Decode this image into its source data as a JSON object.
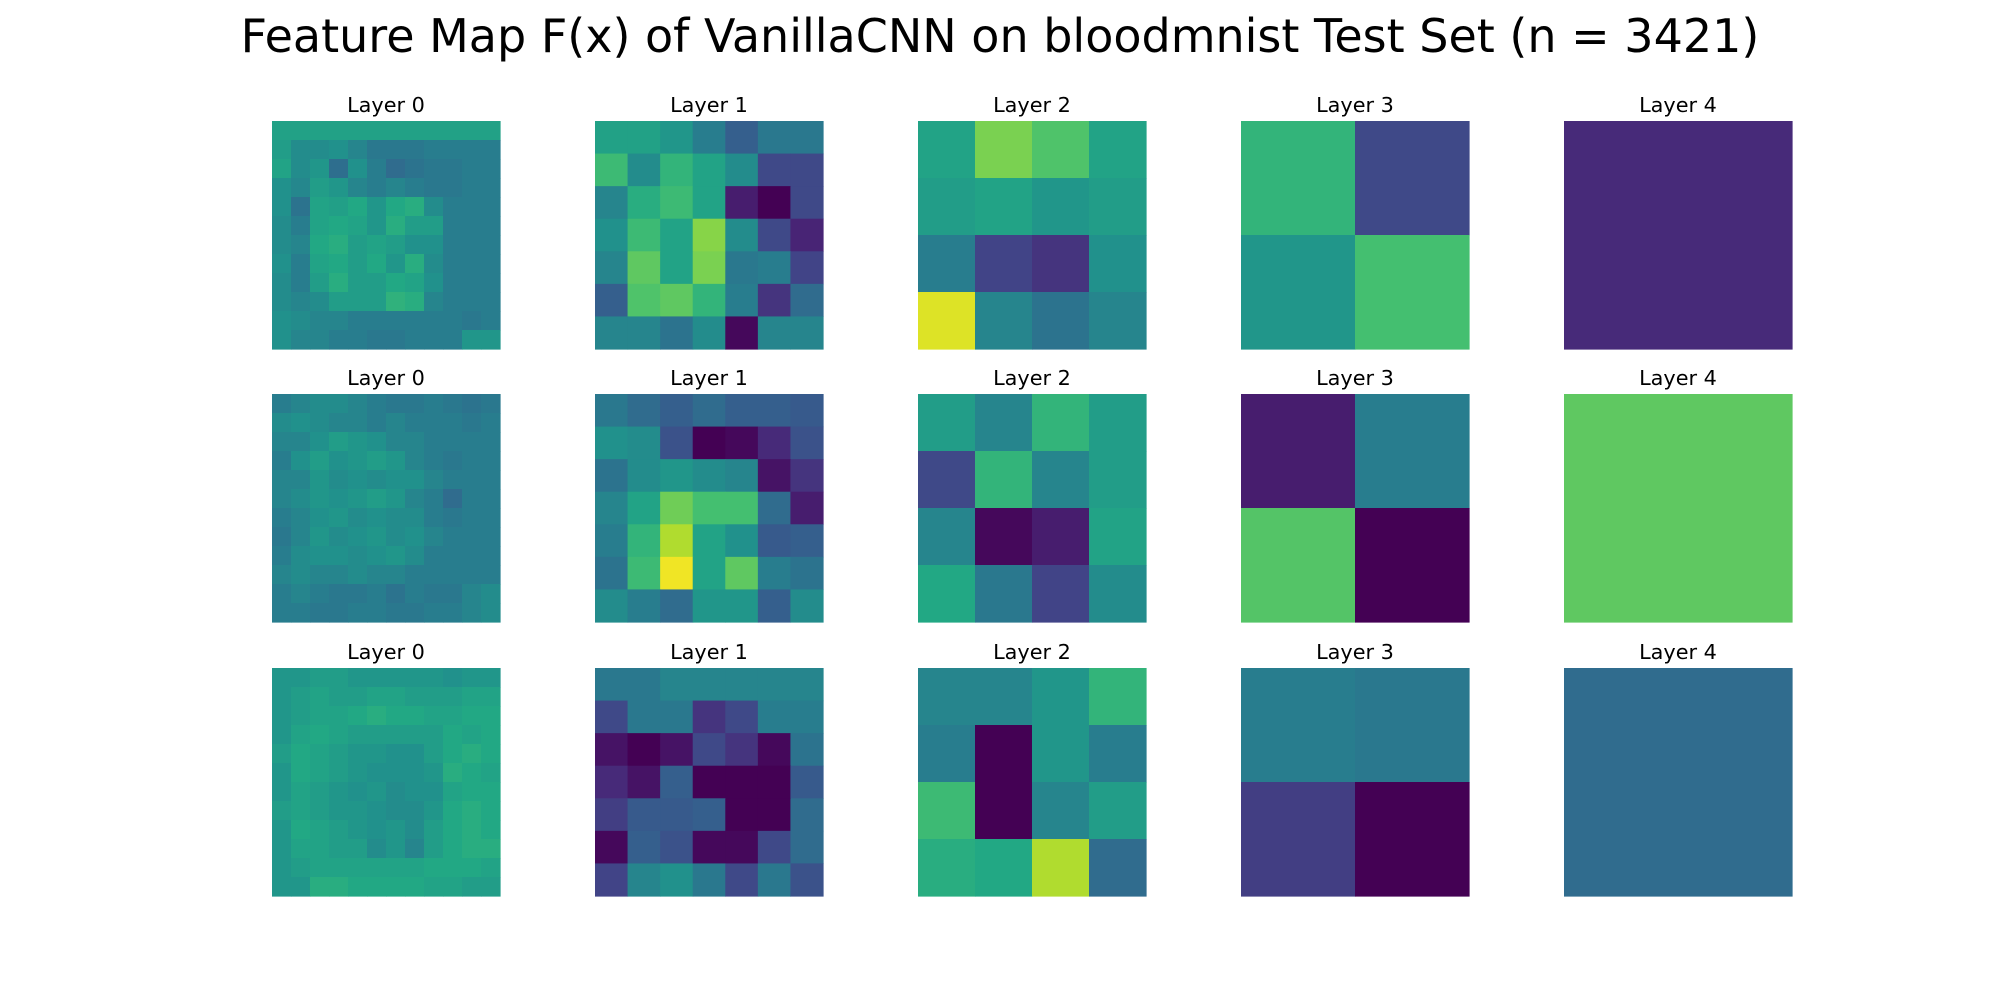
{
  "chart_data": {
    "type": "heatmap",
    "title": "Feature Map F(x) of VanillaCNN on bloodmnist Test Set (n = 3421)",
    "colormap": "viridis",
    "value_range": [
      0,
      1
    ],
    "axes_visible": false,
    "rows": [
      {
        "panels": [
          {
            "title": "Layer 0",
            "values": [
              [
                0.57,
                0.57,
                0.57,
                0.57,
                0.57,
                0.57,
                0.57,
                0.57,
                0.57,
                0.57,
                0.57,
                0.57
              ],
              [
                0.55,
                0.48,
                0.48,
                0.5,
                0.45,
                0.4,
                0.4,
                0.4,
                0.42,
                0.42,
                0.42,
                0.42
              ],
              [
                0.58,
                0.48,
                0.52,
                0.36,
                0.5,
                0.42,
                0.35,
                0.38,
                0.4,
                0.4,
                0.42,
                0.42
              ],
              [
                0.5,
                0.46,
                0.55,
                0.52,
                0.45,
                0.42,
                0.45,
                0.42,
                0.4,
                0.4,
                0.42,
                0.42
              ],
              [
                0.5,
                0.38,
                0.58,
                0.56,
                0.6,
                0.52,
                0.6,
                0.62,
                0.48,
                0.42,
                0.42,
                0.42
              ],
              [
                0.48,
                0.42,
                0.58,
                0.6,
                0.58,
                0.52,
                0.62,
                0.55,
                0.55,
                0.42,
                0.42,
                0.42
              ],
              [
                0.48,
                0.45,
                0.6,
                0.62,
                0.55,
                0.58,
                0.55,
                0.5,
                0.5,
                0.42,
                0.42,
                0.42
              ],
              [
                0.5,
                0.42,
                0.58,
                0.6,
                0.55,
                0.6,
                0.52,
                0.62,
                0.48,
                0.42,
                0.42,
                0.42
              ],
              [
                0.48,
                0.42,
                0.55,
                0.62,
                0.55,
                0.55,
                0.6,
                0.58,
                0.5,
                0.42,
                0.42,
                0.42
              ],
              [
                0.48,
                0.45,
                0.48,
                0.55,
                0.55,
                0.55,
                0.64,
                0.62,
                0.45,
                0.42,
                0.42,
                0.42
              ],
              [
                0.5,
                0.48,
                0.45,
                0.45,
                0.42,
                0.42,
                0.42,
                0.42,
                0.42,
                0.42,
                0.4,
                0.42
              ],
              [
                0.5,
                0.45,
                0.45,
                0.42,
                0.42,
                0.4,
                0.4,
                0.42,
                0.42,
                0.42,
                0.52,
                0.52
              ]
            ]
          },
          {
            "title": "Layer 1",
            "values": [
              [
                0.57,
                0.57,
                0.52,
                0.42,
                0.3,
                0.4,
                0.4
              ],
              [
                0.68,
                0.48,
                0.65,
                0.58,
                0.48,
                0.22,
                0.22
              ],
              [
                0.45,
                0.62,
                0.68,
                0.58,
                0.08,
                0.0,
                0.22
              ],
              [
                0.5,
                0.68,
                0.58,
                0.82,
                0.48,
                0.22,
                0.1
              ],
              [
                0.45,
                0.75,
                0.58,
                0.8,
                0.4,
                0.42,
                0.2
              ],
              [
                0.3,
                0.72,
                0.75,
                0.65,
                0.42,
                0.15,
                0.35
              ],
              [
                0.45,
                0.45,
                0.38,
                0.48,
                0.02,
                0.45,
                0.45
              ]
            ]
          },
          {
            "title": "Layer 2",
            "values": [
              [
                0.58,
                0.8,
                0.72,
                0.58
              ],
              [
                0.55,
                0.58,
                0.52,
                0.55
              ],
              [
                0.42,
                0.2,
                0.15,
                0.5
              ],
              [
                0.95,
                0.45,
                0.38,
                0.45
              ]
            ]
          },
          {
            "title": "Layer 3",
            "values": [
              [
                0.65,
                0.22
              ],
              [
                0.52,
                0.7
              ]
            ]
          },
          {
            "title": "Layer 4",
            "values": [
              [
                0.12
              ]
            ]
          }
        ]
      },
      {
        "panels": [
          {
            "title": "Layer 0",
            "values": [
              [
                0.42,
                0.45,
                0.48,
                0.48,
                0.45,
                0.42,
                0.4,
                0.4,
                0.42,
                0.4,
                0.38,
                0.4
              ],
              [
                0.48,
                0.5,
                0.48,
                0.45,
                0.45,
                0.42,
                0.45,
                0.42,
                0.42,
                0.42,
                0.4,
                0.42
              ],
              [
                0.45,
                0.45,
                0.5,
                0.55,
                0.52,
                0.5,
                0.45,
                0.45,
                0.42,
                0.42,
                0.42,
                0.42
              ],
              [
                0.42,
                0.5,
                0.55,
                0.5,
                0.52,
                0.55,
                0.52,
                0.45,
                0.42,
                0.4,
                0.42,
                0.42
              ],
              [
                0.45,
                0.45,
                0.52,
                0.48,
                0.5,
                0.48,
                0.5,
                0.5,
                0.45,
                0.42,
                0.42,
                0.42
              ],
              [
                0.45,
                0.48,
                0.52,
                0.5,
                0.52,
                0.55,
                0.52,
                0.45,
                0.42,
                0.35,
                0.42,
                0.42
              ],
              [
                0.42,
                0.45,
                0.5,
                0.52,
                0.48,
                0.5,
                0.48,
                0.48,
                0.42,
                0.4,
                0.42,
                0.42
              ],
              [
                0.4,
                0.45,
                0.52,
                0.48,
                0.5,
                0.52,
                0.48,
                0.5,
                0.45,
                0.42,
                0.42,
                0.42
              ],
              [
                0.42,
                0.48,
                0.5,
                0.5,
                0.48,
                0.5,
                0.52,
                0.48,
                0.42,
                0.42,
                0.42,
                0.42
              ],
              [
                0.45,
                0.48,
                0.45,
                0.45,
                0.48,
                0.45,
                0.45,
                0.42,
                0.42,
                0.42,
                0.42,
                0.42
              ],
              [
                0.42,
                0.45,
                0.42,
                0.4,
                0.4,
                0.42,
                0.38,
                0.42,
                0.4,
                0.4,
                0.45,
                0.48
              ],
              [
                0.42,
                0.42,
                0.4,
                0.4,
                0.42,
                0.42,
                0.4,
                0.4,
                0.42,
                0.42,
                0.45,
                0.48
              ]
            ]
          },
          {
            "title": "Layer 1",
            "values": [
              [
                0.4,
                0.35,
                0.3,
                0.35,
                0.3,
                0.3,
                0.28
              ],
              [
                0.5,
                0.48,
                0.25,
                0.0,
                0.02,
                0.12,
                0.25
              ],
              [
                0.38,
                0.48,
                0.52,
                0.48,
                0.45,
                0.05,
                0.15
              ],
              [
                0.45,
                0.58,
                0.78,
                0.7,
                0.7,
                0.35,
                0.08
              ],
              [
                0.42,
                0.65,
                0.88,
                0.58,
                0.5,
                0.28,
                0.3
              ],
              [
                0.38,
                0.68,
                0.98,
                0.58,
                0.75,
                0.42,
                0.38
              ],
              [
                0.48,
                0.42,
                0.35,
                0.52,
                0.52,
                0.3,
                0.48
              ]
            ]
          },
          {
            "title": "Layer 2",
            "values": [
              [
                0.55,
                0.45,
                0.65,
                0.55
              ],
              [
                0.22,
                0.65,
                0.45,
                0.55
              ],
              [
                0.45,
                0.02,
                0.08,
                0.58
              ],
              [
                0.6,
                0.4,
                0.2,
                0.48
              ]
            ]
          },
          {
            "title": "Layer 3",
            "values": [
              [
                0.08,
                0.42
              ],
              [
                0.73,
                0.0
              ]
            ]
          },
          {
            "title": "Layer 4",
            "values": [
              [
                0.75
              ]
            ]
          }
        ]
      },
      {
        "panels": [
          {
            "title": "Layer 0",
            "values": [
              [
                0.52,
                0.52,
                0.55,
                0.55,
                0.52,
                0.52,
                0.52,
                0.52,
                0.52,
                0.5,
                0.52,
                0.52
              ],
              [
                0.52,
                0.55,
                0.58,
                0.55,
                0.55,
                0.58,
                0.58,
                0.55,
                0.55,
                0.55,
                0.58,
                0.58
              ],
              [
                0.52,
                0.55,
                0.58,
                0.58,
                0.6,
                0.62,
                0.6,
                0.6,
                0.58,
                0.58,
                0.6,
                0.6
              ],
              [
                0.52,
                0.58,
                0.6,
                0.58,
                0.55,
                0.55,
                0.55,
                0.55,
                0.55,
                0.6,
                0.58,
                0.6
              ],
              [
                0.55,
                0.6,
                0.58,
                0.55,
                0.52,
                0.52,
                0.5,
                0.5,
                0.55,
                0.6,
                0.62,
                0.6
              ],
              [
                0.52,
                0.6,
                0.58,
                0.55,
                0.52,
                0.5,
                0.5,
                0.5,
                0.52,
                0.62,
                0.6,
                0.58
              ],
              [
                0.52,
                0.58,
                0.55,
                0.52,
                0.5,
                0.52,
                0.48,
                0.5,
                0.5,
                0.58,
                0.6,
                0.6
              ],
              [
                0.55,
                0.58,
                0.55,
                0.52,
                0.52,
                0.5,
                0.48,
                0.48,
                0.52,
                0.6,
                0.62,
                0.6
              ],
              [
                0.52,
                0.6,
                0.58,
                0.55,
                0.52,
                0.5,
                0.52,
                0.48,
                0.55,
                0.6,
                0.62,
                0.6
              ],
              [
                0.52,
                0.58,
                0.58,
                0.55,
                0.55,
                0.48,
                0.52,
                0.45,
                0.55,
                0.6,
                0.62,
                0.62
              ],
              [
                0.52,
                0.55,
                0.58,
                0.58,
                0.58,
                0.58,
                0.58,
                0.58,
                0.6,
                0.6,
                0.6,
                0.58
              ],
              [
                0.52,
                0.52,
                0.62,
                0.62,
                0.6,
                0.6,
                0.6,
                0.6,
                0.58,
                0.58,
                0.55,
                0.55
              ]
            ]
          },
          {
            "title": "Layer 1",
            "values": [
              [
                0.4,
                0.4,
                0.45,
                0.45,
                0.45,
                0.45,
                0.45
              ],
              [
                0.22,
                0.4,
                0.4,
                0.15,
                0.22,
                0.42,
                0.42
              ],
              [
                0.05,
                0.0,
                0.05,
                0.22,
                0.15,
                0.02,
                0.38
              ],
              [
                0.12,
                0.05,
                0.3,
                0.0,
                0.0,
                0.0,
                0.28
              ],
              [
                0.18,
                0.28,
                0.28,
                0.3,
                0.0,
                0.0,
                0.35
              ],
              [
                0.02,
                0.3,
                0.25,
                0.02,
                0.02,
                0.22,
                0.35
              ],
              [
                0.2,
                0.45,
                0.5,
                0.4,
                0.22,
                0.4,
                0.25
              ]
            ]
          },
          {
            "title": "Layer 2",
            "values": [
              [
                0.45,
                0.45,
                0.52,
                0.65
              ],
              [
                0.42,
                0.0,
                0.52,
                0.42
              ],
              [
                0.68,
                0.0,
                0.45,
                0.55
              ],
              [
                0.62,
                0.6,
                0.88,
                0.35
              ]
            ]
          },
          {
            "title": "Layer 3",
            "values": [
              [
                0.42,
                0.4
              ],
              [
                0.18,
                0.0
              ]
            ]
          },
          {
            "title": "Layer 4",
            "values": [
              [
                0.35
              ]
            ]
          }
        ]
      }
    ]
  }
}
